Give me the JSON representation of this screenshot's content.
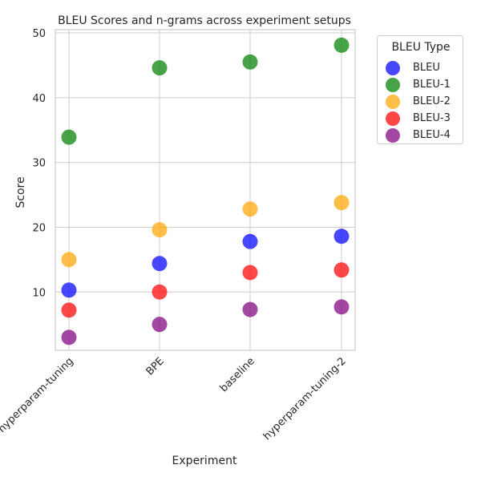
{
  "chart_data": {
    "type": "scatter",
    "title": "BLEU Scores and n-grams across experiment setups",
    "xlabel": "Experiment",
    "ylabel": "Score",
    "categories": [
      "hyperparam-tuning",
      "BPE",
      "baseline",
      "hyperparam-tuning-2"
    ],
    "ylim": [
      1,
      50.5
    ],
    "yticks": [
      10,
      20,
      30,
      40,
      50
    ],
    "grid": true,
    "legend": {
      "title": "BLEU Type",
      "placement": "outside-top-right"
    },
    "series": [
      {
        "name": "BLEU",
        "color": "#0000ff",
        "values": [
          10.3,
          14.4,
          17.8,
          18.6
        ]
      },
      {
        "name": "BLEU-1",
        "color": "#008000",
        "values": [
          33.9,
          44.6,
          45.5,
          48.1
        ]
      },
      {
        "name": "BLEU-2",
        "color": "#ffa500",
        "values": [
          15.0,
          19.6,
          22.8,
          23.8
        ]
      },
      {
        "name": "BLEU-3",
        "color": "#ff0000",
        "values": [
          7.2,
          10.0,
          13.0,
          13.4
        ]
      },
      {
        "name": "BLEU-4",
        "color": "#800080",
        "values": [
          3.0,
          5.0,
          7.3,
          7.7
        ]
      }
    ]
  }
}
